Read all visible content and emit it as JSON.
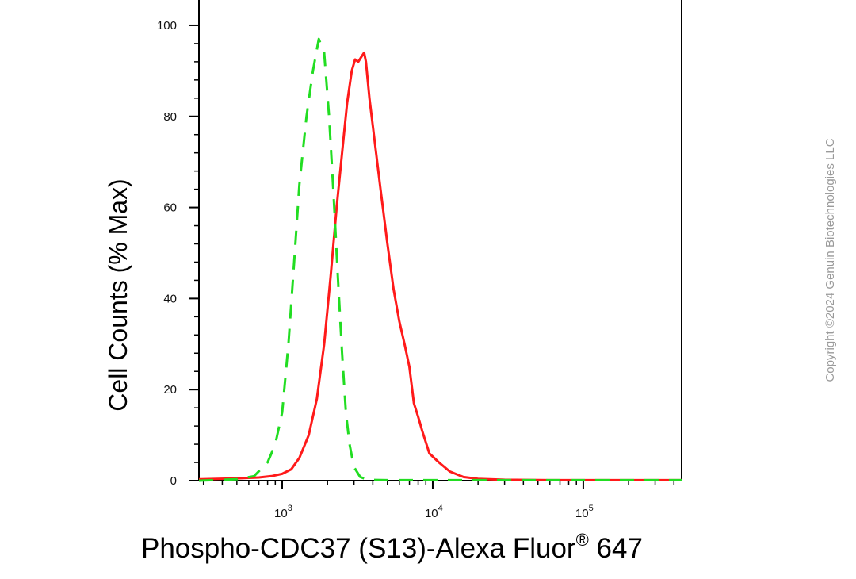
{
  "chart_data": {
    "type": "line",
    "title": "",
    "xlabel": "Phospho-CDC37 (S13)-Alexa Fluor",
    "xlabel_superscript": "®",
    "xlabel_suffix": " 647",
    "ylabel": "Cell Counts (% Max)",
    "x_scale": "log",
    "xlim": [
      280,
      450000
    ],
    "ylim": [
      0,
      104
    ],
    "y_ticks": [
      0,
      20,
      40,
      60,
      80,
      100
    ],
    "x_ticks": [
      {
        "value": 1000,
        "base": "10",
        "exp": "3"
      },
      {
        "value": 10000,
        "base": "10",
        "exp": "4"
      },
      {
        "value": 100000,
        "base": "10",
        "exp": "5"
      }
    ],
    "grid": false,
    "legend": "none",
    "series": [
      {
        "color": "#ff1a1a",
        "style": "solid",
        "x": [
          280,
          500,
          700,
          850,
          1000,
          1150,
          1300,
          1500,
          1700,
          1900,
          2100,
          2300,
          2500,
          2700,
          2900,
          3050,
          3200,
          3350,
          3500,
          3600,
          3800,
          4100,
          4500,
          5000,
          5500,
          6000,
          6500,
          7000,
          7500,
          8000,
          8500,
          9500,
          11000,
          13000,
          16000,
          20000,
          30000,
          60000,
          150000,
          450000
        ],
        "y": [
          0.3,
          0.5,
          0.7,
          1,
          1.5,
          2.5,
          5,
          10,
          18,
          30,
          45,
          60,
          72,
          83,
          90,
          92.5,
          92,
          93,
          94,
          92,
          84,
          75,
          64,
          52,
          42,
          35,
          30,
          25,
          17,
          14,
          11,
          6,
          4,
          2,
          0.8,
          0.4,
          0.2,
          0.1,
          0.1,
          0.1
        ]
      },
      {
        "color": "#22dd22",
        "style": "dashed",
        "x": [
          280,
          500,
          650,
          800,
          900,
          1000,
          1100,
          1200,
          1300,
          1450,
          1600,
          1750,
          1900,
          2050,
          2200,
          2350,
          2500,
          2650,
          2800,
          3000,
          3300,
          3700,
          5000,
          10000,
          100000,
          450000
        ],
        "y": [
          0,
          0.3,
          1,
          4,
          8,
          15,
          30,
          48,
          65,
          80,
          90,
          97,
          94,
          80,
          62,
          44,
          28,
          15,
          8,
          3,
          0.8,
          0.2,
          0.1,
          0.1,
          0.1,
          0.1
        ]
      }
    ]
  },
  "watermark": "Copyright ©2024 Genuin Biotechnologies LLC"
}
